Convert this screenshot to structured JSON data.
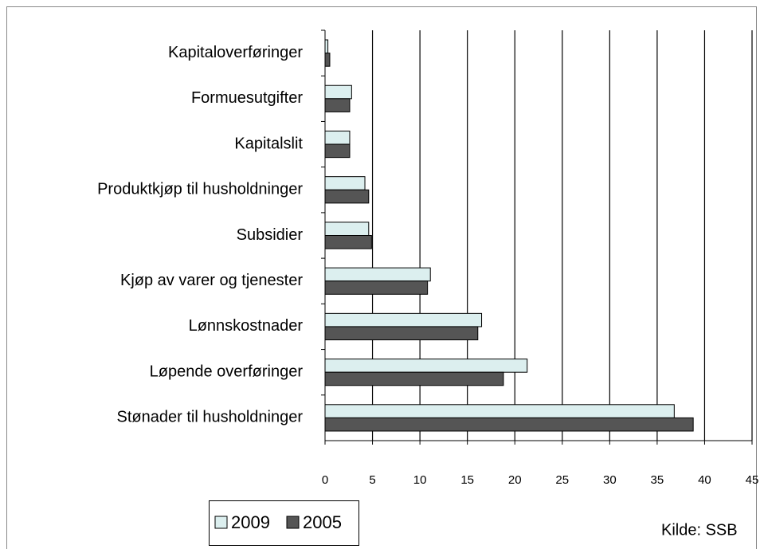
{
  "chart_data": {
    "type": "bar",
    "orientation": "horizontal",
    "categories": [
      "Kapitaloverføringer",
      "Formuesutgifter",
      "Kapitalslit",
      "Produktkjøp til husholdninger",
      "Subsidier",
      "Kjøp av varer og tjenester",
      "Lønnskostnader",
      "Løpende overføringer",
      "Stønader til husholdninger"
    ],
    "series": [
      {
        "name": "2009",
        "color": "#dcefef",
        "values": [
          0.3,
          2.8,
          2.6,
          4.2,
          4.6,
          11.1,
          16.5,
          21.3,
          36.8
        ]
      },
      {
        "name": "2005",
        "color": "#555555",
        "values": [
          0.5,
          2.6,
          2.6,
          4.6,
          4.9,
          10.8,
          16.1,
          18.8,
          38.8
        ]
      }
    ],
    "xlim": [
      0,
      45
    ],
    "xticks": [
      0,
      5,
      10,
      15,
      20,
      25,
      30,
      35,
      40,
      45
    ],
    "grid": true,
    "legend": "bottom-left",
    "source": "Kilde: SSB"
  }
}
